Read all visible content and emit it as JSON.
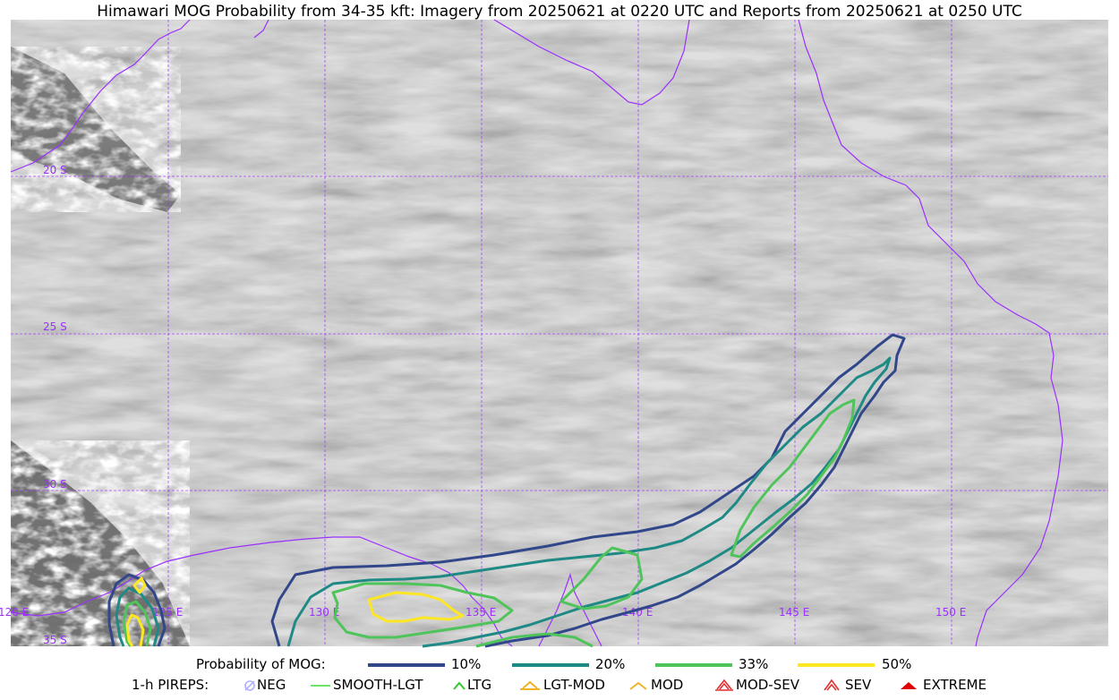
{
  "title": "Himawari MOG Probability from 34-35 kft: Imagery from 20250621 at 0220 UTC and Reports from 20250621 at 0250 UTC",
  "map": {
    "lat_labels": [
      "20 S",
      "25 S",
      "30 S",
      "35 S"
    ],
    "lon_labels": [
      "120 E",
      "125 E",
      "130 E",
      "135 E",
      "140 E",
      "145 E",
      "150 E"
    ],
    "colors": {
      "graticule": "#9b30ff",
      "coastline": "#9b30ff",
      "prob_10": "#31478a",
      "prob_20": "#1f8a85",
      "prob_33": "#4fc45a",
      "prob_50": "#fde725"
    }
  },
  "legend": {
    "prob_title": "Probability of MOG:",
    "prob_levels": [
      "10%",
      "20%",
      "33%",
      "50%"
    ],
    "pirep_title": "1-h PIREPS:",
    "pireps": [
      {
        "label": "NEG",
        "icon": "neg-icon",
        "color": "#b0b0ff"
      },
      {
        "label": "SMOOTH-LGT",
        "icon": "line-icon",
        "color": "#3ddc3d"
      },
      {
        "label": "LTG",
        "icon": "caret-icon",
        "color": "#2ecc2e"
      },
      {
        "label": "LGT-MOD",
        "icon": "caret-bar-icon",
        "color": "#f0b428"
      },
      {
        "label": "MOD",
        "icon": "caret-icon",
        "color": "#f0b428"
      },
      {
        "label": "MOD-SEV",
        "icon": "double-caret-bar-icon",
        "color": "#e03030"
      },
      {
        "label": "SEV",
        "icon": "double-caret-icon",
        "color": "#e03030"
      },
      {
        "label": "EXTREME",
        "icon": "filled-caret-icon",
        "color": "#e00000"
      }
    ]
  }
}
